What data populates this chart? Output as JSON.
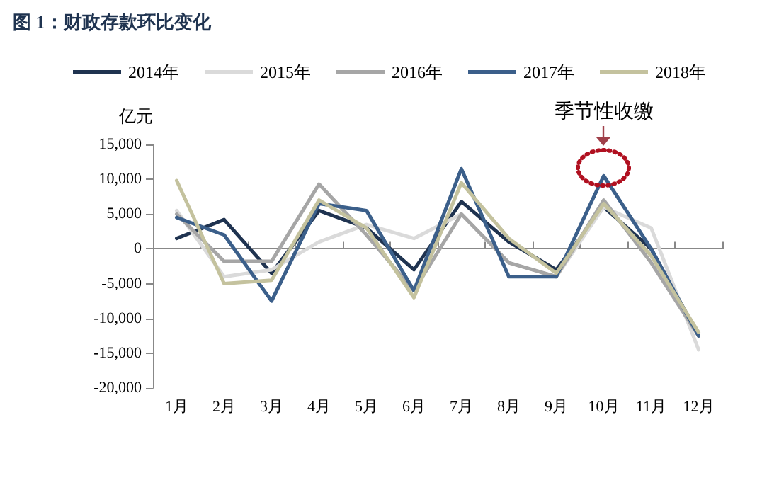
{
  "chart_data": {
    "type": "line",
    "title": "图 1：财政存款环比变化",
    "ylabel": "亿元",
    "categories": [
      "1月",
      "2月",
      "3月",
      "4月",
      "5月",
      "6月",
      "7月",
      "8月",
      "9月",
      "10月",
      "11月",
      "12月"
    ],
    "series": [
      {
        "name": "2014年",
        "color": "#1f3350",
        "values": [
          1500,
          4200,
          -3500,
          5500,
          3000,
          -3000,
          6800,
          1000,
          -3000,
          6000,
          0,
          -12500
        ]
      },
      {
        "name": "2015年",
        "color": "#dadada",
        "values": [
          5500,
          -4000,
          -3000,
          1000,
          3500,
          1500,
          5000,
          -2000,
          -4000,
          6000,
          3000,
          -14500
        ]
      },
      {
        "name": "2016年",
        "color": "#a6a6a6",
        "values": [
          5000,
          -1800,
          -1800,
          9300,
          2000,
          -6000,
          5000,
          -2000,
          -4000,
          7000,
          -2000,
          -12500
        ]
      },
      {
        "name": "2017年",
        "color": "#3b5f8a",
        "values": [
          4500,
          2000,
          -7500,
          6500,
          5500,
          -6000,
          11500,
          -4000,
          -4000,
          10500,
          0,
          -12500
        ]
      },
      {
        "name": "2018年",
        "color": "#c4c29e",
        "values": [
          9800,
          -5000,
          -4500,
          7000,
          3000,
          -7000,
          9500,
          1500,
          -3500,
          6500,
          -1000,
          -12000
        ]
      }
    ],
    "ylim": [
      -20000,
      15000
    ],
    "yticks": [
      {
        "value": -20000,
        "label": "-20,000"
      },
      {
        "value": -15000,
        "label": "-15,000"
      },
      {
        "value": -10000,
        "label": "-10,000"
      },
      {
        "value": -5000,
        "label": "-5,000"
      },
      0,
      {
        "value": 5000,
        "label": "5,000"
      },
      {
        "value": 10000,
        "label": "10,000"
      },
      {
        "value": 15000,
        "label": "15,000"
      }
    ],
    "legend": "top",
    "marker": "none",
    "line_style": "solid",
    "annotations": [
      {
        "text": "季节性收缴",
        "x": "10月",
        "y": 10500
      }
    ]
  }
}
